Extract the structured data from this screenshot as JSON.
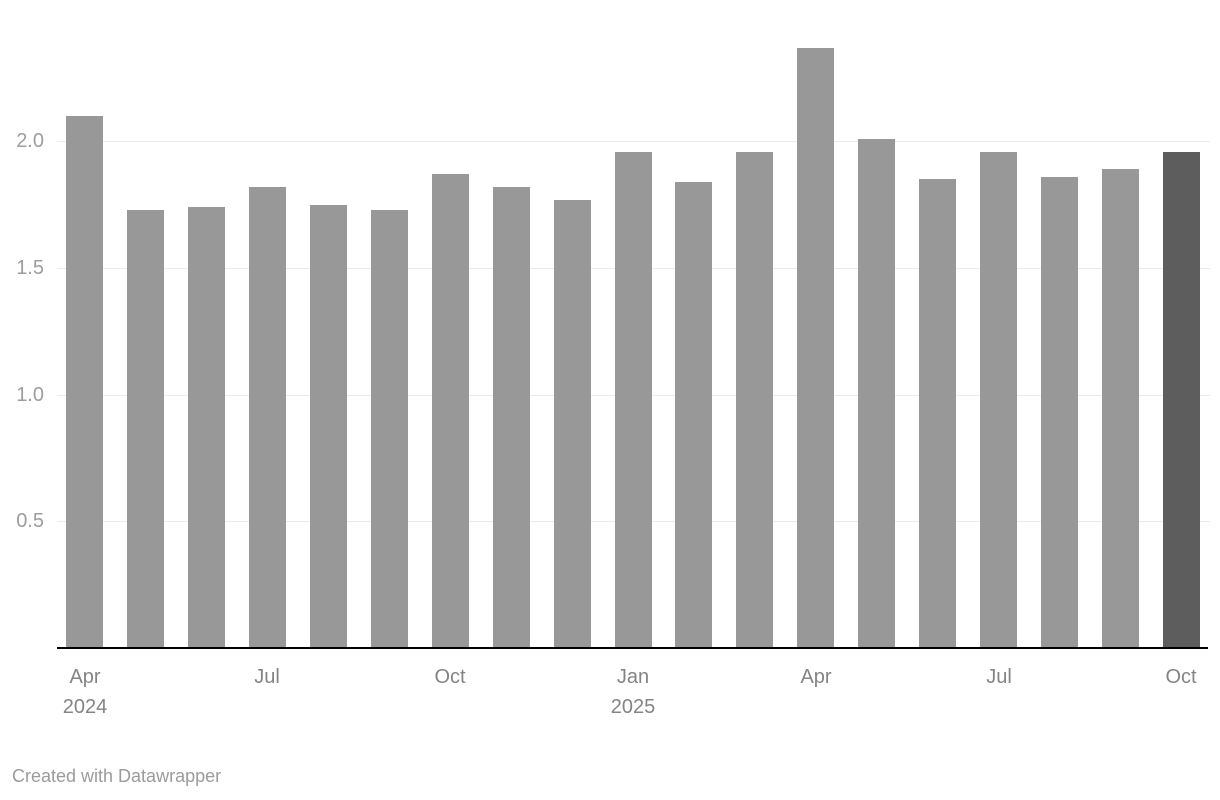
{
  "chart_data": {
    "type": "bar",
    "title": "",
    "categories": [
      "Apr 2024",
      "May 2024",
      "Jun 2024",
      "Jul 2024",
      "Aug 2024",
      "Sep 2024",
      "Oct 2024",
      "Nov 2024",
      "Dec 2024",
      "Jan 2025",
      "Feb 2025",
      "Mar 2025",
      "Apr 2025",
      "May 2025",
      "Jun 2025",
      "Jul 2025",
      "Aug 2025",
      "Sep 2025",
      "Oct 2025"
    ],
    "values": [
      2.1,
      1.73,
      1.74,
      1.82,
      1.75,
      1.73,
      1.87,
      1.82,
      1.77,
      1.96,
      1.84,
      1.96,
      2.37,
      2.01,
      1.85,
      1.96,
      1.86,
      1.89,
      1.96
    ],
    "xlabel": "",
    "ylabel": "",
    "ylim": [
      0,
      2.45
    ],
    "yticks": [
      0.5,
      1.0,
      1.5,
      2.0
    ],
    "ytick_labels": [
      "0.5",
      "1.0",
      "1.5",
      "2.0"
    ],
    "xticks": [
      {
        "index": 0,
        "lines": [
          "Apr",
          "2024"
        ]
      },
      {
        "index": 3,
        "lines": [
          "Jul"
        ]
      },
      {
        "index": 6,
        "lines": [
          "Oct"
        ]
      },
      {
        "index": 9,
        "lines": [
          "Jan",
          "2025"
        ]
      },
      {
        "index": 12,
        "lines": [
          "Apr"
        ]
      },
      {
        "index": 15,
        "lines": [
          "Jul"
        ]
      },
      {
        "index": 18,
        "lines": [
          "Oct"
        ]
      }
    ],
    "grid": "horizontal",
    "legend": "none",
    "bar_color": "#989898",
    "highlight_color": "#5d5d5d",
    "highlight_index": 18,
    "gridline_color": "#ebebeb",
    "axis_color": "#000000"
  },
  "footer": {
    "credit": "Created with Datawrapper"
  }
}
